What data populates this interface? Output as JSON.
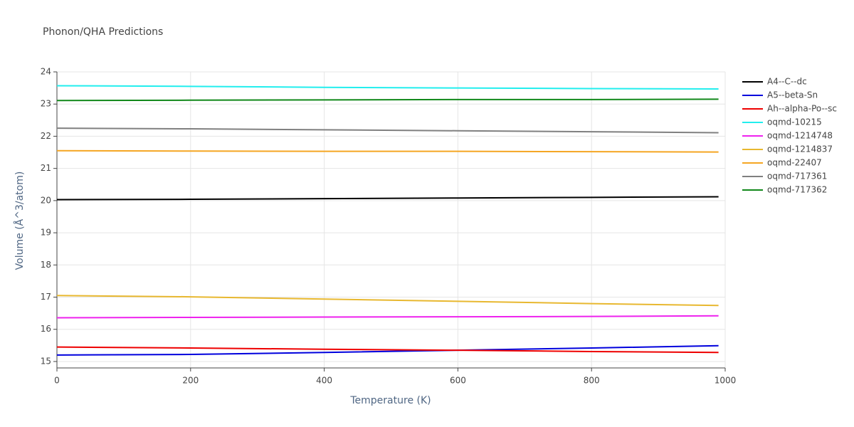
{
  "chart_data": {
    "type": "line",
    "title": "Phonon/QHA Predictions",
    "x_label": "Temperature (K)",
    "y_label": "Volume (Å^3/atom)",
    "x": [
      0,
      200,
      400,
      600,
      800,
      990
    ],
    "xlim": [
      0,
      1000
    ],
    "xticks": [
      0,
      200,
      400,
      600,
      800,
      1000
    ],
    "ylim": [
      14.8,
      24
    ],
    "yticks": [
      15,
      16,
      17,
      18,
      19,
      20,
      21,
      22,
      23,
      24
    ],
    "grid": true,
    "legend": "right",
    "series": [
      {
        "name": "A4--C--dc",
        "color": "#000000",
        "values": [
          20.03,
          20.04,
          20.06,
          20.08,
          20.1,
          20.12
        ]
      },
      {
        "name": "A5--beta-Sn",
        "color": "#0000dd",
        "values": [
          15.2,
          15.22,
          15.28,
          15.35,
          15.42,
          15.49
        ]
      },
      {
        "name": "Ah--alpha-Po--sc",
        "color": "#ee0000",
        "values": [
          15.45,
          15.42,
          15.38,
          15.35,
          15.31,
          15.28
        ]
      },
      {
        "name": "oqmd-10215",
        "color": "#22eeee",
        "values": [
          23.57,
          23.55,
          23.52,
          23.5,
          23.48,
          23.47
        ]
      },
      {
        "name": "oqmd-1214748",
        "color": "#ee22ee",
        "values": [
          16.36,
          16.37,
          16.38,
          16.39,
          16.4,
          16.42
        ]
      },
      {
        "name": "oqmd-1214837",
        "color": "#e8b830",
        "values": [
          17.05,
          17.01,
          16.94,
          16.87,
          16.8,
          16.74
        ]
      },
      {
        "name": "oqmd-22407",
        "color": "#f5a623",
        "values": [
          21.55,
          21.54,
          21.53,
          21.53,
          21.52,
          21.51
        ]
      },
      {
        "name": "oqmd-717361",
        "color": "#808080",
        "values": [
          22.25,
          22.23,
          22.2,
          22.17,
          22.14,
          22.11
        ]
      },
      {
        "name": "oqmd-717362",
        "color": "#11881a",
        "values": [
          23.11,
          23.12,
          23.13,
          23.14,
          23.14,
          23.15
        ]
      }
    ]
  }
}
